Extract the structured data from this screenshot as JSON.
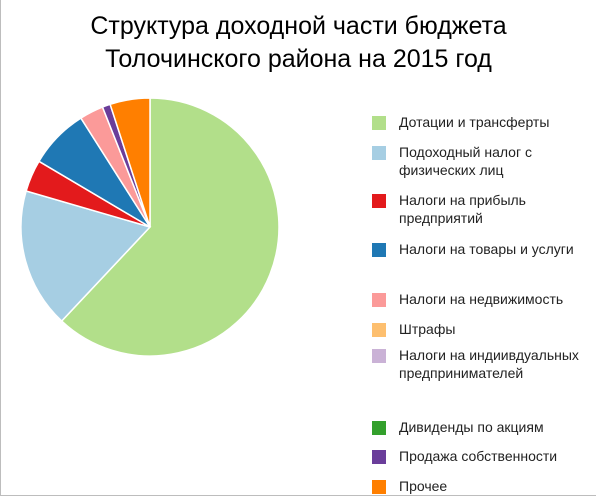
{
  "chart_data": {
    "type": "pie",
    "title_lines": [
      "Структура доходной части бюджета",
      "Толочинского района на 2015 год"
    ],
    "legend_position": "right",
    "start_angle_deg": 0,
    "direction": "clockwise",
    "slices": [
      {
        "label": "Дотации и трансферты",
        "value": 62.0,
        "color": "#b2df8a"
      },
      {
        "label": "Подоходный налог с физических лиц",
        "value": 17.5,
        "color": "#a6cee3"
      },
      {
        "label": "Налоги на прибыль предприятий",
        "value": 4.0,
        "color": "#e31a1c"
      },
      {
        "label": "Налоги на товары и услуги",
        "value": 7.5,
        "color": "#1f78b4"
      },
      {
        "label": "Налоги на недвижимость",
        "value": 3.0,
        "color": "#fb9a99"
      },
      {
        "label": "Штрафы",
        "value": 0.0,
        "color": "#fdbf6f"
      },
      {
        "label": "Налоги на индиивдуальных предпринимателей",
        "value": 0.0,
        "color": "#cab2d6"
      },
      {
        "label": "Дивиденды по акциям",
        "value": 0.0,
        "color": "#33a02c"
      },
      {
        "label": "Продажа собственности",
        "value": 1.0,
        "color": "#6a3d9a"
      },
      {
        "label": "Прочее",
        "value": 5.0,
        "color": "#ff7f00"
      }
    ]
  }
}
